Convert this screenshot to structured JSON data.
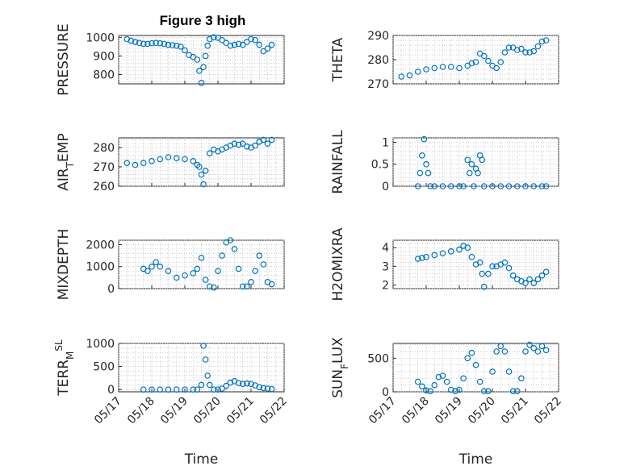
{
  "figure_title": "Figure 3 high",
  "chart_data": [
    {
      "type": "scatter",
      "title": "Figure 3 high",
      "ylabel": "PRESSURE",
      "ylabel_parts": [
        {
          "t": "PRESSURE",
          "s": 0
        }
      ],
      "xlabel": "",
      "ylim": [
        750,
        1010
      ],
      "yticks": [
        800,
        900,
        1000
      ],
      "ytick_labels": [
        "800",
        "900",
        "1000"
      ],
      "x": [
        "2023-05-17T06:00",
        "2023-05-17T09:00",
        "2023-05-17T12:00",
        "2023-05-17T15:00",
        "2023-05-17T18:00",
        "2023-05-17T21:00",
        "2023-05-18T00:00",
        "2023-05-18T03:00",
        "2023-05-18T06:00",
        "2023-05-18T09:00",
        "2023-05-18T12:00",
        "2023-05-18T15:00",
        "2023-05-18T18:00",
        "2023-05-18T21:00",
        "2023-05-19T00:00",
        "2023-05-19T03:00",
        "2023-05-19T06:00",
        "2023-05-19T09:00",
        "2023-05-19T10:30",
        "2023-05-19T12:00",
        "2023-05-19T13:30",
        "2023-05-19T15:00",
        "2023-05-19T16:30",
        "2023-05-19T18:00",
        "2023-05-19T21:00",
        "2023-05-20T00:00",
        "2023-05-20T03:00",
        "2023-05-20T06:00",
        "2023-05-20T09:00",
        "2023-05-20T12:00",
        "2023-05-20T15:00",
        "2023-05-20T18:00",
        "2023-05-20T21:00",
        "2023-05-21T00:00",
        "2023-05-21T03:00",
        "2023-05-21T06:00",
        "2023-05-21T09:00",
        "2023-05-21T12:00",
        "2023-05-21T15:00"
      ],
      "values": [
        990,
        982,
        975,
        970,
        965,
        965,
        968,
        970,
        968,
        965,
        960,
        958,
        955,
        950,
        930,
        905,
        895,
        880,
        820,
        755,
        840,
        900,
        955,
        990,
        1000,
        998,
        985,
        970,
        955,
        960,
        965,
        960,
        975,
        990,
        985,
        960,
        925,
        940,
        960
      ],
      "yscale": "linear",
      "grid": true
    },
    {
      "type": "scatter",
      "ylabel": "THETA",
      "ylabel_parts": [
        {
          "t": "THETA",
          "s": 0
        }
      ],
      "xlabel": "",
      "ylim": [
        270,
        290
      ],
      "yticks": [
        270,
        280,
        290
      ],
      "ytick_labels": [
        "270",
        "280",
        "290"
      ],
      "x": [
        "2023-05-17T06:00",
        "2023-05-17T12:00",
        "2023-05-17T18:00",
        "2023-05-18T00:00",
        "2023-05-18T06:00",
        "2023-05-18T12:00",
        "2023-05-18T18:00",
        "2023-05-19T00:00",
        "2023-05-19T06:00",
        "2023-05-19T09:00",
        "2023-05-19T12:00",
        "2023-05-19T15:00",
        "2023-05-19T18:00",
        "2023-05-19T21:00",
        "2023-05-20T00:00",
        "2023-05-20T03:00",
        "2023-05-20T06:00",
        "2023-05-20T09:00",
        "2023-05-20T12:00",
        "2023-05-20T15:00",
        "2023-05-20T18:00",
        "2023-05-20T21:00",
        "2023-05-21T00:00",
        "2023-05-21T03:00",
        "2023-05-21T06:00",
        "2023-05-21T09:00",
        "2023-05-21T12:00",
        "2023-05-21T15:00"
      ],
      "values": [
        273,
        273.5,
        275,
        276,
        276.5,
        277,
        277,
        276.5,
        277.5,
        278.5,
        279,
        282.5,
        281.5,
        279.5,
        277.5,
        276.5,
        279,
        283,
        285,
        285,
        284,
        284.5,
        283,
        283,
        283.5,
        285.5,
        287.5,
        288
      ],
      "yscale": "linear",
      "grid": true
    },
    {
      "type": "scatter",
      "ylabel": "AIR_TEMP",
      "ylabel_parts": [
        {
          "t": "AIR",
          "s": 0
        },
        {
          "t": "T",
          "s": -1
        },
        {
          "t": "EMP",
          "s": 0
        }
      ],
      "xlabel": "",
      "ylim": [
        260,
        285
      ],
      "yticks": [
        260,
        270,
        280
      ],
      "ytick_labels": [
        "260",
        "270",
        "280"
      ],
      "x": [
        "2023-05-17T06:00",
        "2023-05-17T12:00",
        "2023-05-17T18:00",
        "2023-05-18T00:00",
        "2023-05-18T06:00",
        "2023-05-18T12:00",
        "2023-05-18T18:00",
        "2023-05-19T00:00",
        "2023-05-19T06:00",
        "2023-05-19T09:00",
        "2023-05-19T10:30",
        "2023-05-19T12:00",
        "2023-05-19T13:30",
        "2023-05-19T15:00",
        "2023-05-19T18:00",
        "2023-05-19T21:00",
        "2023-05-20T00:00",
        "2023-05-20T03:00",
        "2023-05-20T06:00",
        "2023-05-20T09:00",
        "2023-05-20T12:00",
        "2023-05-20T15:00",
        "2023-05-20T18:00",
        "2023-05-20T21:00",
        "2023-05-21T00:00",
        "2023-05-21T03:00",
        "2023-05-21T06:00",
        "2023-05-21T09:00",
        "2023-05-21T12:00",
        "2023-05-21T15:00"
      ],
      "values": [
        272,
        271,
        272,
        273,
        274,
        275,
        274.5,
        274,
        273,
        271,
        270,
        266,
        261,
        268,
        277,
        279,
        278,
        279,
        280,
        281,
        282,
        281.5,
        282,
        280.5,
        280,
        281,
        283,
        284,
        282,
        284
      ],
      "yscale": "linear",
      "grid": true
    },
    {
      "type": "scatter",
      "ylabel": "RAINFALL",
      "ylabel_parts": [
        {
          "t": "RAINFALL",
          "s": 0
        }
      ],
      "xlabel": "",
      "ylim": [
        0,
        1.1
      ],
      "yticks": [
        0,
        0.5,
        1
      ],
      "ytick_labels": [
        "0",
        "0.5",
        "1"
      ],
      "x": [
        "2023-05-17T18:00",
        "2023-05-17T19:30",
        "2023-05-17T21:00",
        "2023-05-17T22:30",
        "2023-05-18T00:00",
        "2023-05-18T01:30",
        "2023-05-18T03:00",
        "2023-05-18T06:00",
        "2023-05-18T12:00",
        "2023-05-18T18:00",
        "2023-05-19T00:00",
        "2023-05-19T03:00",
        "2023-05-19T06:00",
        "2023-05-19T07:30",
        "2023-05-19T09:00",
        "2023-05-19T10:30",
        "2023-05-19T12:00",
        "2023-05-19T13:30",
        "2023-05-19T15:00",
        "2023-05-19T16:30",
        "2023-05-19T18:00",
        "2023-05-20T00:00",
        "2023-05-20T06:00",
        "2023-05-20T12:00",
        "2023-05-20T18:00",
        "2023-05-21T00:00",
        "2023-05-21T06:00",
        "2023-05-21T12:00",
        "2023-05-21T15:00"
      ],
      "values": [
        0,
        0.3,
        0.7,
        1.07,
        0.5,
        0.3,
        0,
        0,
        0,
        0,
        0,
        0,
        0.6,
        0.3,
        0.5,
        0,
        0.4,
        0.3,
        0.7,
        0.6,
        0,
        0,
        0,
        0,
        0,
        0,
        0,
        0,
        0
      ],
      "yscale": "linear",
      "grid": true
    },
    {
      "type": "scatter",
      "ylabel": "MIXDEPTH",
      "ylabel_parts": [
        {
          "t": "MIXDEPTH",
          "s": 0
        }
      ],
      "xlabel": "",
      "ylim": [
        0,
        2200
      ],
      "yticks": [
        0,
        1000,
        2000
      ],
      "ytick_labels": [
        "0",
        "1000",
        "2000"
      ],
      "x": [
        "2023-05-17T18:00",
        "2023-05-17T21:00",
        "2023-05-18T00:00",
        "2023-05-18T03:00",
        "2023-05-18T06:00",
        "2023-05-18T12:00",
        "2023-05-18T18:00",
        "2023-05-19T00:00",
        "2023-05-19T06:00",
        "2023-05-19T09:00",
        "2023-05-19T12:00",
        "2023-05-19T15:00",
        "2023-05-19T18:00",
        "2023-05-19T21:00",
        "2023-05-20T00:00",
        "2023-05-20T03:00",
        "2023-05-20T06:00",
        "2023-05-20T09:00",
        "2023-05-20T12:00",
        "2023-05-20T15:00",
        "2023-05-20T18:00",
        "2023-05-20T21:00",
        "2023-05-21T00:00",
        "2023-05-21T03:00",
        "2023-05-21T06:00",
        "2023-05-21T09:00",
        "2023-05-21T12:00",
        "2023-05-21T15:00"
      ],
      "values": [
        900,
        800,
        1000,
        1200,
        1000,
        800,
        500,
        600,
        700,
        900,
        1400,
        400,
        100,
        50,
        800,
        1500,
        2100,
        2200,
        1800,
        900,
        100,
        100,
        300,
        800,
        1500,
        1100,
        300,
        200
      ],
      "yscale": "linear",
      "grid": true
    },
    {
      "type": "scatter",
      "ylabel": "H2OMIXRA",
      "ylabel_parts": [
        {
          "t": "H2OMIXRA",
          "s": 0
        }
      ],
      "xlabel": "",
      "ylim": [
        1.8,
        4.4
      ],
      "yticks": [
        2,
        3,
        4
      ],
      "ytick_labels": [
        "2",
        "3",
        "4"
      ],
      "x": [
        "2023-05-17T18:00",
        "2023-05-17T21:00",
        "2023-05-18T00:00",
        "2023-05-18T06:00",
        "2023-05-18T12:00",
        "2023-05-18T18:00",
        "2023-05-19T00:00",
        "2023-05-19T03:00",
        "2023-05-19T06:00",
        "2023-05-19T09:00",
        "2023-05-19T12:00",
        "2023-05-19T15:00",
        "2023-05-19T16:30",
        "2023-05-19T18:00",
        "2023-05-19T21:00",
        "2023-05-20T00:00",
        "2023-05-20T03:00",
        "2023-05-20T06:00",
        "2023-05-20T09:00",
        "2023-05-20T12:00",
        "2023-05-20T15:00",
        "2023-05-20T18:00",
        "2023-05-20T21:00",
        "2023-05-21T00:00",
        "2023-05-21T03:00",
        "2023-05-21T06:00",
        "2023-05-21T09:00",
        "2023-05-21T12:00",
        "2023-05-21T15:00"
      ],
      "values": [
        3.4,
        3.45,
        3.5,
        3.6,
        3.7,
        3.8,
        3.9,
        4.1,
        4.0,
        3.5,
        3.1,
        3.2,
        2.6,
        1.9,
        2.6,
        3.0,
        3.0,
        3.1,
        3.2,
        2.9,
        2.5,
        2.3,
        2.2,
        2.1,
        2.3,
        2.1,
        2.3,
        2.5,
        2.7
      ],
      "yscale": "linear",
      "grid": true
    },
    {
      "type": "scatter",
      "ylabel": "TERR_MSL",
      "ylabel_parts": [
        {
          "t": "TERR",
          "s": 0
        },
        {
          "t": "M",
          "s": -1
        },
        {
          "t": "SL",
          "s": 1
        }
      ],
      "xlabel": "Time",
      "ylim": [
        -50,
        1000
      ],
      "yticks": [
        0,
        500,
        1000
      ],
      "ytick_labels": [
        "0",
        "500",
        "1000"
      ],
      "xticks": [
        "2023-05-17",
        "2023-05-18",
        "2023-05-19",
        "2023-05-20",
        "2023-05-21",
        "2023-05-22"
      ],
      "xtick_labels": [
        "05/17",
        "05/18",
        "05/19",
        "05/20",
        "05/21",
        "05/22"
      ],
      "x": [
        "2023-05-17T18:00",
        "2023-05-18T00:00",
        "2023-05-18T06:00",
        "2023-05-18T12:00",
        "2023-05-18T18:00",
        "2023-05-19T00:00",
        "2023-05-19T06:00",
        "2023-05-19T09:00",
        "2023-05-19T12:00",
        "2023-05-19T13:30",
        "2023-05-19T15:00",
        "2023-05-19T16:30",
        "2023-05-19T18:00",
        "2023-05-19T21:00",
        "2023-05-20T00:00",
        "2023-05-20T03:00",
        "2023-05-20T06:00",
        "2023-05-20T09:00",
        "2023-05-20T12:00",
        "2023-05-20T15:00",
        "2023-05-20T18:00",
        "2023-05-20T21:00",
        "2023-05-21T00:00",
        "2023-05-21T03:00",
        "2023-05-21T06:00",
        "2023-05-21T09:00",
        "2023-05-21T12:00",
        "2023-05-21T15:00"
      ],
      "values": [
        0,
        0,
        0,
        0,
        0,
        0,
        0,
        0,
        100,
        950,
        650,
        300,
        100,
        0,
        0,
        20,
        80,
        150,
        180,
        140,
        120,
        130,
        120,
        90,
        50,
        30,
        20,
        10
      ],
      "yscale": "linear",
      "grid": true
    },
    {
      "type": "scatter",
      "ylabel": "SUN_FLUX",
      "ylabel_parts": [
        {
          "t": "SUN",
          "s": 0
        },
        {
          "t": "F",
          "s": -1
        },
        {
          "t": "LUX",
          "s": 0
        }
      ],
      "xlabel": "Time",
      "ylim": [
        0,
        720
      ],
      "yticks": [
        0,
        500
      ],
      "ytick_labels": [
        "0",
        "500"
      ],
      "xticks": [
        "2023-05-17",
        "2023-05-18",
        "2023-05-19",
        "2023-05-20",
        "2023-05-21",
        "2023-05-22"
      ],
      "xtick_labels": [
        "05/17",
        "05/18",
        "05/19",
        "05/20",
        "05/21",
        "05/22"
      ],
      "x": [
        "2023-05-17T18:00",
        "2023-05-17T21:00",
        "2023-05-18T00:00",
        "2023-05-18T03:00",
        "2023-05-18T06:00",
        "2023-05-18T09:00",
        "2023-05-18T12:00",
        "2023-05-18T15:00",
        "2023-05-18T18:00",
        "2023-05-18T21:00",
        "2023-05-19T00:00",
        "2023-05-19T03:00",
        "2023-05-19T06:00",
        "2023-05-19T09:00",
        "2023-05-19T12:00",
        "2023-05-19T15:00",
        "2023-05-19T18:00",
        "2023-05-19T21:00",
        "2023-05-20T00:00",
        "2023-05-20T03:00",
        "2023-05-20T06:00",
        "2023-05-20T09:00",
        "2023-05-20T12:00",
        "2023-05-20T15:00",
        "2023-05-20T18:00",
        "2023-05-20T21:00",
        "2023-05-21T00:00",
        "2023-05-21T03:00",
        "2023-05-21T06:00",
        "2023-05-21T09:00",
        "2023-05-21T12:00",
        "2023-05-21T15:00"
      ],
      "values": [
        150,
        80,
        20,
        10,
        100,
        220,
        240,
        150,
        30,
        10,
        30,
        200,
        500,
        580,
        400,
        150,
        10,
        10,
        300,
        600,
        680,
        600,
        300,
        10,
        10,
        200,
        600,
        700,
        650,
        600,
        680,
        620
      ],
      "yscale": "linear",
      "grid": true
    }
  ]
}
